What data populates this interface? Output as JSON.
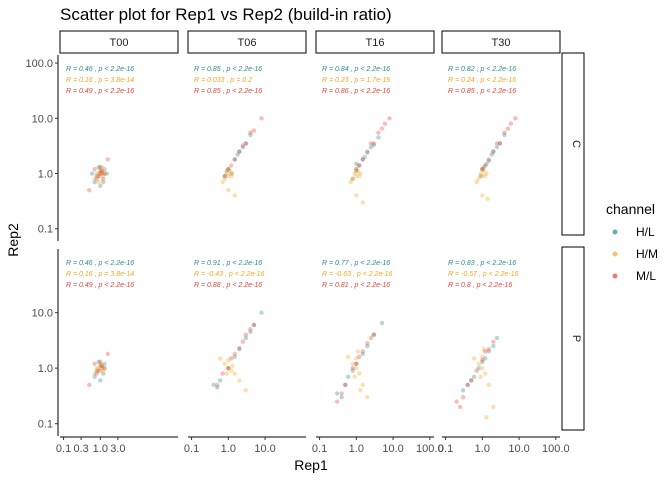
{
  "chart_data": {
    "type": "scatter",
    "title": "Scatter plot for Rep1 vs Rep2 (build-in ratio)",
    "xlabel": "Rep1",
    "ylabel": "Rep2",
    "x_scale": "log10",
    "y_scale": "log10",
    "xlim": [
      0.08,
      130
    ],
    "ylim": [
      0.06,
      140
    ],
    "x_ticks": {
      "T00": [
        {
          "v": 0.1,
          "label": "0.1"
        },
        {
          "v": 0.3,
          "label": "0.3"
        },
        {
          "v": 1,
          "label": "1.0"
        },
        {
          "v": 3,
          "label": "3.0"
        }
      ],
      "T06": [
        {
          "v": 0.1,
          "label": "0.1"
        },
        {
          "v": 1,
          "label": "1.0"
        },
        {
          "v": 10,
          "label": "10.0"
        }
      ],
      "T16": [
        {
          "v": 0.1,
          "label": "0.1"
        },
        {
          "v": 1,
          "label": "1.0"
        },
        {
          "v": 10,
          "label": "10.0"
        },
        {
          "v": 100,
          "label": "100.0"
        }
      ],
      "T30": [
        {
          "v": 0.1,
          "label": "0.1"
        },
        {
          "v": 1,
          "label": "1.0"
        },
        {
          "v": 10,
          "label": "10.0"
        },
        {
          "v": 100,
          "label": "100.0"
        }
      ]
    },
    "y_ticks": [
      {
        "v": 0.1,
        "label": "0.1"
      },
      {
        "v": 1,
        "label": "1.0"
      },
      {
        "v": 10,
        "label": "10.0"
      }
    ],
    "y_ticks_row_C_extra": [
      {
        "v": 100,
        "label": "100.0"
      }
    ],
    "facet_columns": [
      "T00",
      "T06",
      "T16",
      "T30"
    ],
    "facet_rows": [
      "C",
      "P"
    ],
    "legend": {
      "title": "channel",
      "position": "right",
      "entries": [
        {
          "name": "H/L",
          "color": "#2e8b8b"
        },
        {
          "name": "H/M",
          "color": "#f5a623"
        },
        {
          "name": "M/L",
          "color": "#e8413a"
        }
      ]
    },
    "correlations": {
      "C": {
        "T00": [
          "R = 0.46 , p < 2.2e-16",
          "R = 0.16 , p = 3.8e-14",
          "R = 0.49 , p < 2.2e-16"
        ],
        "T06": [
          "R = 0.85 , p < 2.2e-16",
          "R = 0.033 , p = 0.2",
          "R = 0.85 , p < 2.2e-16"
        ],
        "T16": [
          "R = 0.84 , p < 2.2e-16",
          "R = 0.23 , p = 1.7e-15",
          "R = 0.86 , p < 2.2e-16"
        ],
        "T30": [
          "R = 0.82 , p < 2.2e-16",
          "R = 0.24 , p < 2.2e-16",
          "R = 0.85 , p < 2.2e-16"
        ]
      },
      "P": {
        "T00": [
          "R = 0.46 , p < 2.2e-16",
          "R = 0.16 , p = 3.8e-14",
          "R = 0.49 , p < 2.2e-16"
        ],
        "T06": [
          "R = 0.91 , p < 2.2e-16",
          "R = -0.43 , p < 2.2e-16",
          "R = 0.88 , p < 2.2e-16"
        ],
        "T16": [
          "R = 0.77 , p < 2.2e-16",
          "R = -0.63 , p < 2.2e-16",
          "R = 0.81 , p < 2.2e-16"
        ],
        "T30": [
          "R = 0.83 , p < 2.2e-16",
          "R = -0.57 , p < 2.2e-16",
          "R = 0.8 , p < 2.2e-16"
        ]
      }
    },
    "series": [
      {
        "name": "H/L",
        "color": "#2e8b8b",
        "points": {
          "C_T00": [
            [
              0.8,
              0.9
            ],
            [
              1.0,
              1.1
            ],
            [
              1.2,
              0.8
            ],
            [
              0.9,
              1.3
            ],
            [
              1.1,
              1.0
            ],
            [
              0.7,
              0.7
            ],
            [
              1.3,
              1.2
            ],
            [
              1.0,
              0.6
            ],
            [
              0.6,
              1.0
            ],
            [
              1.5,
              1.0
            ]
          ],
          "C_T06": [
            [
              1.0,
              1.2
            ],
            [
              1.5,
              1.8
            ],
            [
              2.0,
              2.5
            ],
            [
              0.8,
              0.9
            ],
            [
              3.0,
              3.5
            ],
            [
              1.2,
              1.0
            ],
            [
              2.5,
              3.0
            ],
            [
              0.9,
              1.1
            ],
            [
              4.0,
              5.0
            ],
            [
              1.8,
              2.2
            ]
          ],
          "C_T16": [
            [
              1.0,
              1.1
            ],
            [
              1.5,
              1.8
            ],
            [
              2.0,
              2.4
            ],
            [
              3.0,
              3.3
            ],
            [
              0.8,
              0.8
            ],
            [
              1.2,
              1.4
            ],
            [
              2.5,
              3.0
            ],
            [
              4.0,
              4.5
            ],
            [
              1.0,
              1.5
            ],
            [
              1.7,
              2.0
            ]
          ],
          "C_T30": [
            [
              1.0,
              1.2
            ],
            [
              1.5,
              1.7
            ],
            [
              2.0,
              2.5
            ],
            [
              3.0,
              3.5
            ],
            [
              0.9,
              0.9
            ],
            [
              1.3,
              1.5
            ],
            [
              2.5,
              3.0
            ],
            [
              4.0,
              5.0
            ],
            [
              1.1,
              1.3
            ],
            [
              1.8,
              2.2
            ]
          ],
          "P_T00": [
            [
              0.8,
              0.9
            ],
            [
              1.0,
              1.1
            ],
            [
              1.2,
              0.8
            ],
            [
              0.9,
              1.3
            ],
            [
              1.1,
              1.0
            ],
            [
              0.7,
              0.7
            ],
            [
              1.3,
              1.2
            ],
            [
              1.0,
              0.6
            ]
          ],
          "P_T06": [
            [
              0.4,
              0.5
            ],
            [
              0.6,
              0.6
            ],
            [
              1.0,
              1.0
            ],
            [
              2.0,
              2.2
            ],
            [
              3.0,
              3.5
            ],
            [
              5.0,
              6.0
            ],
            [
              8.0,
              10.0
            ],
            [
              0.5,
              0.45
            ],
            [
              1.5,
              1.6
            ],
            [
              4.0,
              4.5
            ]
          ],
          "P_T16": [
            [
              0.3,
              0.35
            ],
            [
              0.5,
              0.5
            ],
            [
              0.8,
              0.9
            ],
            [
              1.5,
              1.8
            ],
            [
              3.0,
              4.0
            ],
            [
              5.0,
              6.5
            ],
            [
              0.4,
              0.3
            ],
            [
              1.0,
              1.2
            ],
            [
              2.0,
              2.5
            ],
            [
              0.6,
              0.7
            ]
          ],
          "P_T30": [
            [
              0.3,
              0.4
            ],
            [
              0.5,
              0.6
            ],
            [
              0.8,
              1.0
            ],
            [
              1.5,
              2.0
            ],
            [
              2.5,
              3.5
            ],
            [
              0.4,
              0.5
            ],
            [
              1.0,
              1.3
            ],
            [
              0.6,
              0.7
            ],
            [
              2.0,
              2.5
            ],
            [
              1.2,
              1.5
            ]
          ]
        }
      },
      {
        "name": "H/M",
        "color": "#f5a623",
        "points": {
          "C_T00": [
            [
              0.9,
              1.0
            ],
            [
              1.0,
              0.9
            ],
            [
              1.1,
              1.1
            ],
            [
              0.8,
              1.0
            ],
            [
              1.2,
              0.9
            ],
            [
              1.0,
              1.2
            ],
            [
              0.7,
              0.8
            ],
            [
              1.3,
              1.0
            ],
            [
              0.9,
              0.7
            ],
            [
              1.1,
              1.3
            ]
          ],
          "C_T06": [
            [
              0.9,
              1.0
            ],
            [
              1.0,
              0.9
            ],
            [
              1.1,
              1.1
            ],
            [
              0.8,
              0.8
            ],
            [
              1.2,
              0.9
            ],
            [
              1.0,
              1.2
            ],
            [
              0.7,
              0.7
            ],
            [
              1.3,
              1.0
            ],
            [
              1.0,
              0.5
            ],
            [
              1.5,
              0.4
            ]
          ],
          "C_T16": [
            [
              0.9,
              1.0
            ],
            [
              1.0,
              0.9
            ],
            [
              1.1,
              1.1
            ],
            [
              0.8,
              0.8
            ],
            [
              1.2,
              0.9
            ],
            [
              1.0,
              1.2
            ],
            [
              0.7,
              0.7
            ],
            [
              1.3,
              1.0
            ],
            [
              1.0,
              0.4
            ],
            [
              1.5,
              0.3
            ]
          ],
          "C_T30": [
            [
              0.9,
              1.0
            ],
            [
              1.0,
              0.9
            ],
            [
              1.1,
              1.1
            ],
            [
              0.8,
              0.8
            ],
            [
              1.2,
              0.9
            ],
            [
              1.0,
              1.2
            ],
            [
              0.7,
              0.7
            ],
            [
              1.3,
              1.0
            ],
            [
              1.0,
              0.4
            ],
            [
              1.4,
              0.35
            ]
          ],
          "P_T00": [
            [
              0.9,
              1.0
            ],
            [
              1.0,
              0.9
            ],
            [
              1.1,
              1.1
            ],
            [
              0.8,
              1.0
            ],
            [
              1.2,
              0.9
            ],
            [
              1.0,
              1.2
            ],
            [
              0.7,
              0.8
            ],
            [
              1.3,
              1.0
            ]
          ],
          "P_T06": [
            [
              0.8,
              1.2
            ],
            [
              1.0,
              1.0
            ],
            [
              1.2,
              0.9
            ],
            [
              1.5,
              0.8
            ],
            [
              2.0,
              0.6
            ],
            [
              0.6,
              1.5
            ],
            [
              1.0,
              1.4
            ],
            [
              0.9,
              0.8
            ],
            [
              3.0,
              0.4
            ],
            [
              1.3,
              1.1
            ]
          ],
          "P_T16": [
            [
              0.8,
              1.2
            ],
            [
              1.0,
              1.0
            ],
            [
              1.2,
              0.8
            ],
            [
              1.5,
              0.5
            ],
            [
              2.0,
              0.3
            ],
            [
              0.6,
              1.6
            ],
            [
              1.0,
              1.5
            ],
            [
              0.9,
              0.7
            ],
            [
              1.1,
              2.0
            ],
            [
              1.3,
              0.4
            ]
          ],
          "P_T30": [
            [
              0.8,
              1.2
            ],
            [
              1.0,
              1.0
            ],
            [
              1.2,
              0.8
            ],
            [
              1.5,
              0.5
            ],
            [
              2.0,
              0.2
            ],
            [
              0.6,
              1.5
            ],
            [
              1.0,
              1.6
            ],
            [
              0.9,
              0.7
            ],
            [
              1.1,
              2.2
            ],
            [
              1.3,
              0.13
            ]
          ]
        }
      },
      {
        "name": "M/L",
        "color": "#e8413a",
        "points": {
          "C_T00": [
            [
              0.9,
              0.9
            ],
            [
              1.1,
              1.1
            ],
            [
              1.0,
              1.3
            ],
            [
              0.8,
              0.8
            ],
            [
              1.3,
              1.0
            ],
            [
              0.5,
              0.5
            ],
            [
              1.6,
              1.8
            ],
            [
              0.7,
              1.2
            ],
            [
              1.2,
              0.7
            ],
            [
              1.0,
              1.0
            ]
          ],
          "C_T06": [
            [
              1.0,
              1.2
            ],
            [
              1.5,
              1.8
            ],
            [
              2.0,
              2.5
            ],
            [
              3.0,
              3.5
            ],
            [
              5.0,
              6.0
            ],
            [
              8.0,
              10.0
            ],
            [
              1.2,
              1.4
            ],
            [
              2.5,
              3.2
            ],
            [
              4.0,
              5.5
            ],
            [
              0.8,
              0.9
            ]
          ],
          "C_T16": [
            [
              1.0,
              1.2
            ],
            [
              1.5,
              1.8
            ],
            [
              2.0,
              2.5
            ],
            [
              3.0,
              3.5
            ],
            [
              5.0,
              6.5
            ],
            [
              8.0,
              10.0
            ],
            [
              1.2,
              1.4
            ],
            [
              2.5,
              3.5
            ],
            [
              4.0,
              5.5
            ],
            [
              6.0,
              8.0
            ]
          ],
          "C_T30": [
            [
              1.0,
              1.2
            ],
            [
              1.5,
              1.8
            ],
            [
              2.0,
              2.5
            ],
            [
              3.0,
              3.5
            ],
            [
              5.0,
              6.5
            ],
            [
              8.0,
              10.0
            ],
            [
              1.2,
              1.4
            ],
            [
              2.5,
              3.5
            ],
            [
              4.0,
              5.5
            ],
            [
              6.0,
              8.0
            ]
          ],
          "P_T00": [
            [
              0.9,
              0.9
            ],
            [
              1.1,
              1.1
            ],
            [
              1.0,
              1.3
            ],
            [
              0.8,
              0.8
            ],
            [
              1.3,
              1.0
            ],
            [
              0.5,
              0.5
            ],
            [
              1.6,
              1.8
            ],
            [
              0.7,
              1.2
            ]
          ],
          "P_T06": [
            [
              0.5,
              0.5
            ],
            [
              1.0,
              1.0
            ],
            [
              2.0,
              2.3
            ],
            [
              3.0,
              4.0
            ],
            [
              5.0,
              6.0
            ],
            [
              1.5,
              1.8
            ],
            [
              0.7,
              0.8
            ],
            [
              4.0,
              5.0
            ],
            [
              2.5,
              3.0
            ],
            [
              1.2,
              1.5
            ]
          ],
          "P_T16": [
            [
              0.3,
              0.25
            ],
            [
              0.5,
              0.5
            ],
            [
              1.0,
              1.2
            ],
            [
              2.0,
              2.8
            ],
            [
              3.0,
              4.0
            ],
            [
              0.4,
              0.35
            ],
            [
              1.5,
              2.0
            ],
            [
              0.8,
              1.0
            ],
            [
              2.5,
              3.5
            ],
            [
              1.2,
              1.6
            ]
          ],
          "P_T30": [
            [
              0.2,
              0.25
            ],
            [
              0.3,
              0.3
            ],
            [
              0.5,
              0.6
            ],
            [
              1.0,
              1.4
            ],
            [
              2.0,
              3.0
            ],
            [
              0.25,
              0.2
            ],
            [
              1.5,
              2.2
            ],
            [
              0.7,
              0.9
            ],
            [
              1.2,
              2.0
            ],
            [
              0.4,
              0.5
            ]
          ]
        }
      }
    ]
  }
}
